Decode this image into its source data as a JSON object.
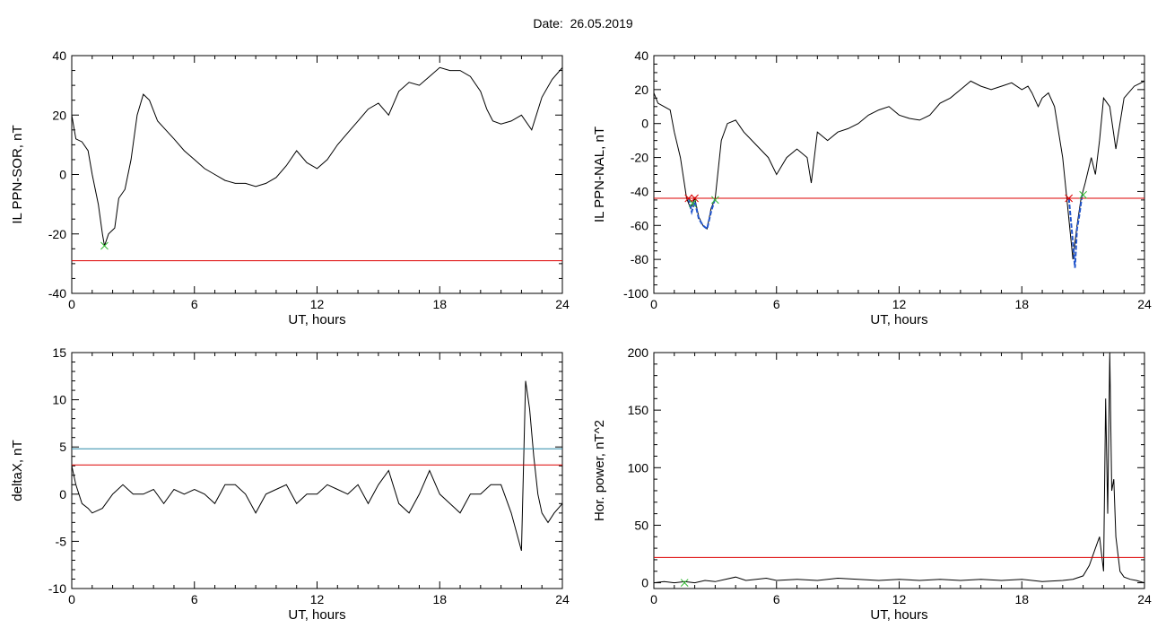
{
  "header": {
    "date_label": "Date:",
    "date_value": "26.05.2019"
  },
  "chart_data": [
    {
      "id": "p1",
      "type": "line",
      "xlabel": "UT, hours",
      "ylabel": "IL PPN-SOR, nT",
      "xlim": [
        0,
        24
      ],
      "ylim": [
        -40,
        40
      ],
      "xticks": [
        0,
        6,
        12,
        18,
        24
      ],
      "yticks": [
        -40,
        -20,
        0,
        20,
        40
      ],
      "series": [
        {
          "color": "#000000",
          "x": [
            0,
            0.2,
            0.5,
            0.8,
            1.0,
            1.3,
            1.5,
            1.6,
            1.8,
            2.1,
            2.3,
            2.6,
            2.9,
            3.2,
            3.5,
            3.8,
            4.2,
            4.6,
            5.0,
            5.5,
            6.0,
            6.5,
            7.0,
            7.5,
            8.0,
            8.5,
            9.0,
            9.5,
            10.0,
            10.5,
            11.0,
            11.5,
            12.0,
            12.5,
            13.0,
            13.5,
            14.0,
            14.5,
            15.0,
            15.5,
            16.0,
            16.5,
            17.0,
            17.5,
            18.0,
            18.5,
            19.0,
            19.5,
            20.0,
            20.3,
            20.6,
            21.0,
            21.5,
            22.0,
            22.5,
            23.0,
            23.5,
            24.0
          ],
          "y": [
            20,
            12,
            11,
            8,
            0,
            -10,
            -20,
            -24,
            -20,
            -18,
            -8,
            -5,
            5,
            20,
            27,
            25,
            18,
            15,
            12,
            8,
            5,
            2,
            0,
            -2,
            -3,
            -3,
            -4,
            -3,
            -1,
            3,
            8,
            4,
            2,
            5,
            10,
            14,
            18,
            22,
            24,
            20,
            28,
            31,
            30,
            33,
            36,
            35,
            35,
            33,
            28,
            22,
            18,
            17,
            18,
            20,
            15,
            26,
            32,
            36
          ]
        },
        {
          "color": "#dd0000",
          "x": [
            0,
            24
          ],
          "y": [
            -29,
            -29
          ]
        }
      ],
      "markers": [
        {
          "x": 1.6,
          "y": -24,
          "color": "#33bb33"
        }
      ]
    },
    {
      "id": "p2",
      "type": "line",
      "xlabel": "UT, hours",
      "ylabel": "IL PPN-NAL, nT",
      "xlim": [
        0,
        24
      ],
      "ylim": [
        -100,
        40
      ],
      "xticks": [
        0,
        6,
        12,
        18,
        24
      ],
      "yticks": [
        -100,
        -80,
        -60,
        -40,
        -20,
        0,
        20,
        40
      ],
      "series": [
        {
          "color": "#000000",
          "x": [
            0,
            0.2,
            0.5,
            0.8,
            1.0,
            1.3,
            1.6,
            1.8,
            2.0,
            2.2,
            2.4,
            2.6,
            2.8,
            3.0,
            3.3,
            3.6,
            4.0,
            4.4,
            4.8,
            5.2,
            5.6,
            6.0,
            6.5,
            7.0,
            7.5,
            7.7,
            8.0,
            8.5,
            9.0,
            9.5,
            10.0,
            10.5,
            11.0,
            11.5,
            12.0,
            12.5,
            13.0,
            13.5,
            14.0,
            14.5,
            15.0,
            15.5,
            16.0,
            16.5,
            17.0,
            17.5,
            18.0,
            18.3,
            18.5,
            18.8,
            19.0,
            19.3,
            19.6,
            20.0,
            20.2,
            20.5,
            20.7,
            20.9,
            21.1,
            21.4,
            21.6,
            21.8,
            22.0,
            22.3,
            22.6,
            23.0,
            23.5,
            24.0
          ],
          "y": [
            18,
            12,
            10,
            8,
            -5,
            -20,
            -44,
            -50,
            -44,
            -55,
            -60,
            -62,
            -50,
            -44,
            -10,
            0,
            2,
            -5,
            -10,
            -15,
            -20,
            -30,
            -20,
            -15,
            -20,
            -35,
            -5,
            -10,
            -5,
            -3,
            0,
            5,
            8,
            10,
            5,
            3,
            2,
            5,
            12,
            15,
            20,
            25,
            22,
            20,
            22,
            24,
            20,
            22,
            18,
            10,
            15,
            18,
            10,
            -20,
            -44,
            -80,
            -60,
            -44,
            -35,
            -20,
            -30,
            -10,
            15,
            10,
            -15,
            15,
            22,
            25
          ]
        },
        {
          "color": "#2255cc",
          "x": [
            1.7,
            1.85,
            2.0,
            2.2,
            2.4,
            2.6,
            2.8,
            3.0
          ],
          "y": [
            -44,
            -52,
            -46,
            -56,
            -60,
            -62,
            -52,
            -44
          ]
        },
        {
          "color": "#2255cc",
          "x": [
            20.3,
            20.5,
            20.6,
            20.7,
            20.8,
            20.95
          ],
          "y": [
            -44,
            -70,
            -85,
            -62,
            -55,
            -42
          ]
        },
        {
          "color": "#dd0000",
          "x": [
            0,
            24
          ],
          "y": [
            -44,
            -44
          ]
        }
      ],
      "markers": [
        {
          "x": 1.7,
          "y": -44,
          "color": "#dd0000"
        },
        {
          "x": 2.0,
          "y": -44,
          "color": "#dd0000"
        },
        {
          "x": 20.3,
          "y": -44,
          "color": "#dd0000"
        },
        {
          "x": 1.9,
          "y": -47,
          "color": "#33bb33"
        },
        {
          "x": 3.0,
          "y": -45,
          "color": "#33bb33"
        },
        {
          "x": 21.0,
          "y": -42,
          "color": "#33bb33"
        }
      ]
    },
    {
      "id": "p3",
      "type": "line",
      "xlabel": "UT, hours",
      "ylabel": "deltaX, nT",
      "xlim": [
        0,
        24
      ],
      "ylim": [
        -10,
        15
      ],
      "xticks": [
        0,
        6,
        12,
        18,
        24
      ],
      "yticks": [
        -10,
        -5,
        0,
        5,
        10,
        15
      ],
      "series": [
        {
          "color": "#000000",
          "x": [
            0,
            0.2,
            0.5,
            0.8,
            1.0,
            1.5,
            2.0,
            2.5,
            3.0,
            3.5,
            4.0,
            4.5,
            5.0,
            5.5,
            6.0,
            6.5,
            7.0,
            7.5,
            8.0,
            8.5,
            9.0,
            9.5,
            10.0,
            10.5,
            11.0,
            11.5,
            12.0,
            12.5,
            13.0,
            13.5,
            14.0,
            14.5,
            15.0,
            15.5,
            16.0,
            16.5,
            17.0,
            17.5,
            18.0,
            18.5,
            19.0,
            19.5,
            20.0,
            20.5,
            21.0,
            21.5,
            22.0,
            22.2,
            22.4,
            22.6,
            22.8,
            23.0,
            23.3,
            23.6,
            24.0
          ],
          "y": [
            3,
            1,
            -1,
            -1.5,
            -2,
            -1.5,
            0,
            1,
            0,
            0,
            0.5,
            -1,
            0.5,
            0,
            0.5,
            0,
            -1,
            1,
            1,
            0,
            -2,
            0,
            0.5,
            1,
            -1,
            0,
            0,
            1,
            0.5,
            0,
            1,
            -1,
            1,
            2.5,
            -1,
            -2,
            0,
            2.5,
            0,
            -1,
            -2,
            0,
            0,
            1,
            1,
            -2,
            -6,
            12,
            9,
            4,
            0,
            -2,
            -3,
            -2,
            -1
          ]
        },
        {
          "color": "#2a8aa8",
          "x": [
            0,
            24
          ],
          "y": [
            4.8,
            4.8
          ]
        },
        {
          "color": "#dd0000",
          "x": [
            0,
            24
          ],
          "y": [
            3.1,
            3.1
          ]
        }
      ],
      "markers": []
    },
    {
      "id": "p4",
      "type": "line",
      "xlabel": "UT, hours",
      "ylabel": "Hor. power, nT^2",
      "xlim": [
        0,
        24
      ],
      "ylim": [
        -5,
        200
      ],
      "xticks": [
        0,
        6,
        12,
        18,
        24
      ],
      "yticks": [
        0,
        50,
        100,
        150,
        200
      ],
      "series": [
        {
          "color": "#000000",
          "x": [
            0,
            0.5,
            1.0,
            1.5,
            2.0,
            2.5,
            3.0,
            3.5,
            4.0,
            4.5,
            5.0,
            5.5,
            6.0,
            7.0,
            8.0,
            9.0,
            10.0,
            11.0,
            12.0,
            13.0,
            14.0,
            15.0,
            16.0,
            17.0,
            18.0,
            19.0,
            20.0,
            20.5,
            21.0,
            21.3,
            21.6,
            21.8,
            22.0,
            22.1,
            22.2,
            22.3,
            22.4,
            22.5,
            22.6,
            22.8,
            23.0,
            23.3,
            23.6,
            24.0
          ],
          "y": [
            0,
            1,
            0,
            1,
            0,
            2,
            1,
            3,
            5,
            2,
            3,
            4,
            2,
            3,
            2,
            4,
            3,
            2,
            3,
            2,
            3,
            2,
            3,
            2,
            3,
            1,
            2,
            3,
            6,
            15,
            30,
            40,
            10,
            160,
            60,
            200,
            80,
            90,
            40,
            10,
            5,
            3,
            2,
            0
          ]
        },
        {
          "color": "#dd0000",
          "x": [
            0,
            24
          ],
          "y": [
            22,
            22
          ]
        }
      ],
      "markers": [
        {
          "x": 1.5,
          "y": 0,
          "color": "#33bb33"
        }
      ]
    }
  ]
}
